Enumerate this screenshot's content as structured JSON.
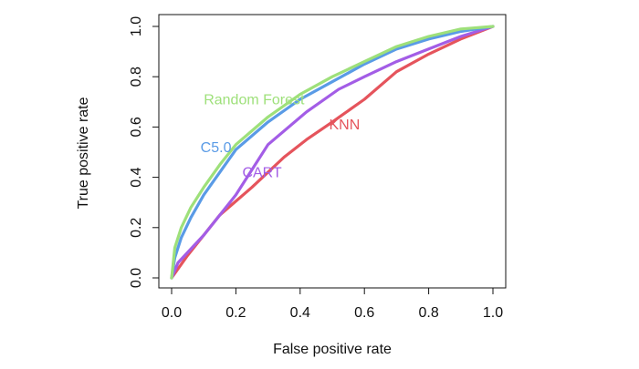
{
  "chart_data": {
    "type": "line",
    "title": "",
    "xlabel": "False positive rate",
    "ylabel": "True positive rate",
    "xlim": [
      0,
      1
    ],
    "ylim": [
      0,
      1
    ],
    "x_ticks": [
      "0.0",
      "0.2",
      "0.4",
      "0.6",
      "0.8",
      "1.0"
    ],
    "y_ticks": [
      "0.0",
      "0.2",
      "0.4",
      "0.6",
      "0.8",
      "1.0"
    ],
    "grid": false,
    "legend": "inline labels",
    "series": [
      {
        "name": "KNN",
        "color": "#e5545c",
        "x": [
          0.0,
          0.05,
          0.15,
          0.25,
          0.35,
          0.42,
          0.5,
          0.6,
          0.7,
          0.8,
          0.9,
          1.0
        ],
        "y": [
          0.0,
          0.09,
          0.25,
          0.36,
          0.48,
          0.55,
          0.62,
          0.71,
          0.82,
          0.89,
          0.95,
          1.0
        ]
      },
      {
        "name": "CART",
        "color": "#a35de6",
        "x": [
          0.0,
          0.02,
          0.1,
          0.2,
          0.3,
          0.42,
          0.52,
          0.6,
          0.7,
          0.8,
          0.9,
          1.0
        ],
        "y": [
          0.0,
          0.06,
          0.17,
          0.33,
          0.53,
          0.66,
          0.75,
          0.8,
          0.86,
          0.91,
          0.96,
          1.0
        ]
      },
      {
        "name": "C5.0",
        "color": "#5a9be6",
        "x": [
          0.0,
          0.01,
          0.03,
          0.06,
          0.1,
          0.15,
          0.2,
          0.3,
          0.4,
          0.5,
          0.6,
          0.7,
          0.8,
          0.9,
          1.0
        ],
        "y": [
          0.0,
          0.08,
          0.16,
          0.24,
          0.33,
          0.42,
          0.51,
          0.62,
          0.71,
          0.78,
          0.85,
          0.91,
          0.95,
          0.98,
          1.0
        ]
      },
      {
        "name": "Random Forest",
        "color": "#9ee07a",
        "x": [
          0.0,
          0.01,
          0.03,
          0.06,
          0.1,
          0.15,
          0.2,
          0.3,
          0.4,
          0.5,
          0.6,
          0.7,
          0.8,
          0.9,
          1.0
        ],
        "y": [
          0.0,
          0.12,
          0.2,
          0.28,
          0.36,
          0.45,
          0.53,
          0.64,
          0.73,
          0.8,
          0.86,
          0.92,
          0.96,
          0.99,
          1.0
        ]
      }
    ],
    "annotations": [
      {
        "text": "Random Forest",
        "x": 0.1,
        "y": 0.69,
        "color": "#9ee07a"
      },
      {
        "text": "KNN",
        "x": 0.49,
        "y": 0.59,
        "color": "#e5545c"
      },
      {
        "text": "C5.0",
        "x": 0.09,
        "y": 0.5,
        "color": "#5a9be6"
      },
      {
        "text": "CART",
        "x": 0.22,
        "y": 0.4,
        "color": "#a35de6"
      }
    ]
  }
}
